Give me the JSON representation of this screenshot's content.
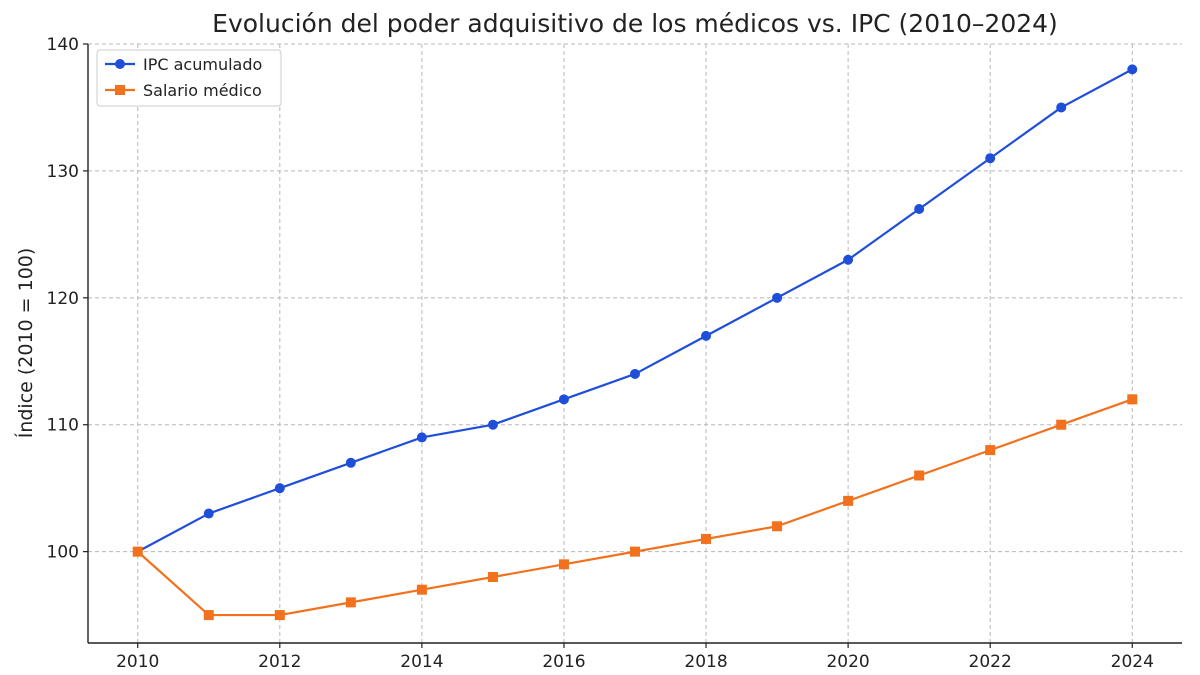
{
  "chart_data": {
    "type": "line",
    "title": "Evolución del poder adquisitivo de los médicos vs. IPC (2010–2024)",
    "xlabel": "",
    "ylabel": "Índice (2010 = 100)",
    "x": [
      2010,
      2011,
      2012,
      2013,
      2014,
      2015,
      2016,
      2017,
      2018,
      2019,
      2020,
      2021,
      2022,
      2023,
      2024
    ],
    "xlim": [
      2009.3,
      2024.7
    ],
    "ylim": [
      92.8,
      140
    ],
    "xticks": [
      2010,
      2012,
      2014,
      2016,
      2018,
      2020,
      2022,
      2024
    ],
    "yticks": [
      100,
      110,
      120,
      130,
      140
    ],
    "grid": true,
    "legend_position": "top-left",
    "series": [
      {
        "name": "IPC acumulado",
        "color": "#1f4fd9",
        "marker": "circle",
        "values": [
          100,
          103,
          105,
          107,
          109,
          110,
          112,
          114,
          117,
          120,
          123,
          127,
          131,
          135,
          138
        ]
      },
      {
        "name": "Salario médico",
        "color": "#f2711c",
        "marker": "square",
        "values": [
          100,
          95,
          95,
          96,
          97,
          98,
          99,
          100,
          101,
          102,
          104,
          106,
          108,
          110,
          112
        ]
      }
    ]
  }
}
